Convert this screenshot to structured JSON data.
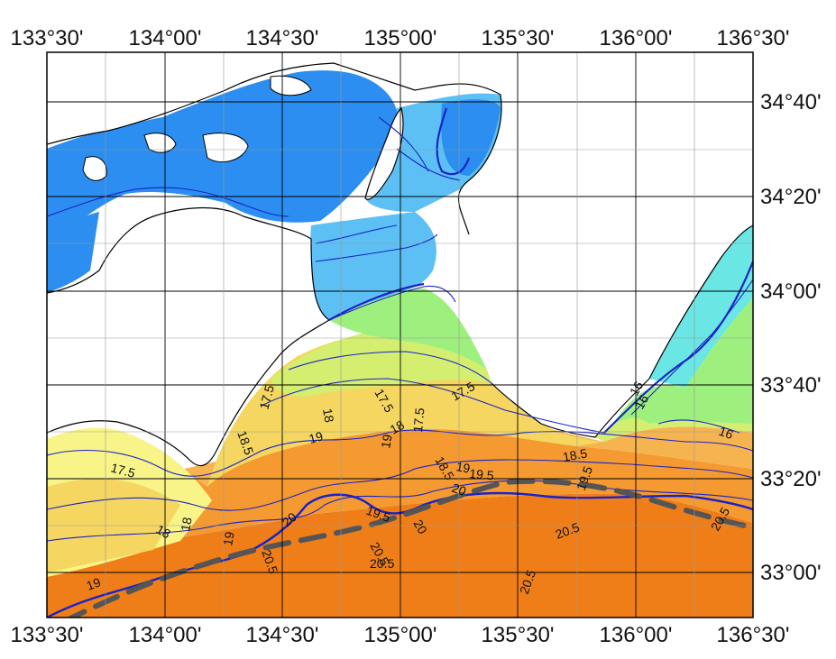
{
  "map": {
    "x_ticks": [
      "133°30'",
      "134°00'",
      "134°30'",
      "135°00'",
      "135°30'",
      "136°00'",
      "136°30'"
    ],
    "y_ticks": [
      "34°40'",
      "34°20'",
      "34°00'",
      "33°40'",
      "33°20'",
      "33°00'"
    ],
    "contour_labels": [
      "16",
      "16",
      "16",
      "17.5",
      "17.5",
      "17.5",
      "17.5",
      "17.5",
      "18",
      "18",
      "18",
      "18.5",
      "18.5",
      "18.5",
      "19",
      "19",
      "19",
      "19",
      "19.5",
      "19.5",
      "19.5",
      "20",
      "20",
      "20",
      "20.5",
      "20.5",
      "20.5",
      "20.5",
      "20.5",
      "20.5",
      "18",
      "19"
    ],
    "colors": {
      "deep_blue": "#2b8ef0",
      "light_blue": "#5cc0f4",
      "cyan": "#6ae6e4",
      "light_green": "#9ef07e",
      "yellow_green": "#d4ee70",
      "pale_yellow": "#f8f488",
      "yellow": "#f4d660",
      "light_orange": "#f6b450",
      "orange": "#f59a30",
      "dark_orange": "#f07e18",
      "contour_line": "#1a22c8",
      "current_path": "#555555"
    }
  }
}
